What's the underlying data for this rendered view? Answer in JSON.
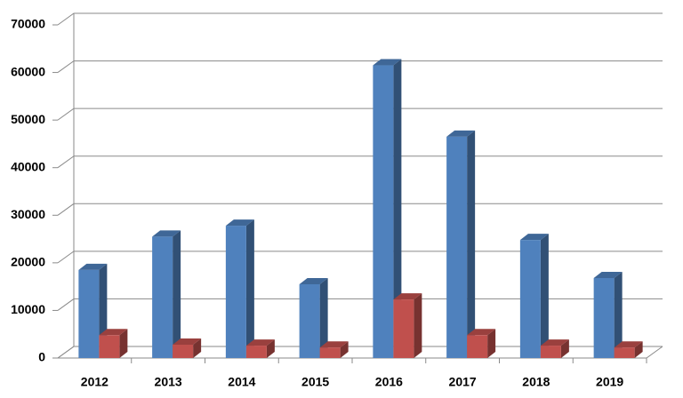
{
  "chart_data": {
    "type": "bar3d",
    "categories": [
      "2012",
      "2013",
      "2014",
      "2015",
      "2016",
      "2017",
      "2018",
      "2019"
    ],
    "series": [
      {
        "color": "#4f81bd",
        "values": [
          18500,
          25500,
          27800,
          15500,
          61500,
          46500,
          24800,
          16800
        ]
      },
      {
        "color": "#c0504d",
        "values": [
          4800,
          2800,
          2600,
          2200,
          12300,
          4800,
          2600,
          2200
        ]
      }
    ],
    "ylim": [
      0,
      70000
    ],
    "yticks": [
      0,
      10000,
      20000,
      30000,
      40000,
      50000,
      60000,
      70000
    ],
    "grid": true
  }
}
